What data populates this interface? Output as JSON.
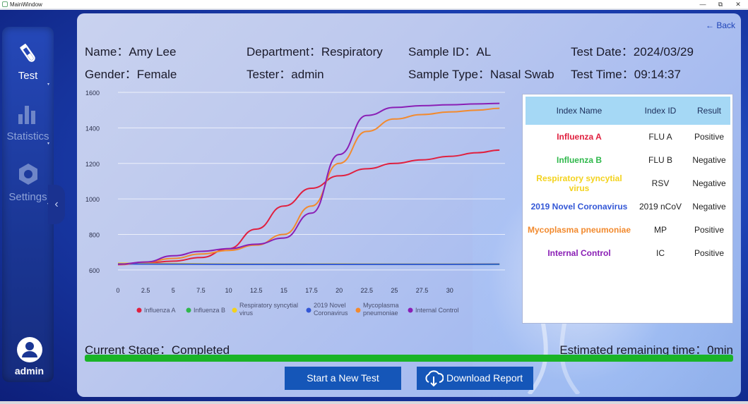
{
  "window": {
    "title": "MainWindow",
    "minimize": "—",
    "restore": "⧉",
    "close": "✕"
  },
  "sidebar": {
    "items": [
      {
        "label": "Test",
        "icon": "test-tube-icon",
        "active": true
      },
      {
        "label": "Statistics",
        "icon": "bar-chart-icon",
        "active": false
      },
      {
        "label": "Settings",
        "icon": "gear-icon",
        "active": false
      }
    ],
    "collapse_glyph": "‹",
    "user": {
      "name": "admin",
      "icon": "user-avatar-icon"
    }
  },
  "header": {
    "back_label": "← Back",
    "name": "Name：Amy Lee",
    "gender": "Gender：Female",
    "department": "Department：Respiratory",
    "tester": "Tester：admin",
    "sample_id": "Sample ID：AL",
    "sample_type": "Sample Type：Nasal Swab",
    "test_date": "Test Date：2024/03/29",
    "test_time": "Test Time：09:14:37"
  },
  "chart_data": {
    "type": "line",
    "title": "",
    "xlabel": "",
    "ylabel": "",
    "xlim": [
      0,
      35
    ],
    "ylim": [
      560,
      1600
    ],
    "x_ticks": [
      0,
      2.5,
      5,
      7.5,
      10,
      12.5,
      15,
      17.5,
      20,
      22.5,
      25,
      27.5,
      30
    ],
    "x_tick_labels": [
      "0",
      "2.5",
      "5",
      "7.5",
      "10",
      "12.5",
      "15",
      "17.5",
      "20",
      "22.5",
      "25",
      "27.5",
      "30"
    ],
    "y_ticks": [
      600,
      800,
      1000,
      1200,
      1400,
      1600
    ],
    "y_tick_labels": [
      "600",
      "800",
      "1000",
      "1200",
      "1400",
      "1600"
    ],
    "grid": true,
    "legend_position": "bottom",
    "series": [
      {
        "name": "Influenza A",
        "color": "#e0203f",
        "x": [
          0,
          2.5,
          5,
          7.5,
          10,
          12.5,
          15,
          17.5,
          20,
          22.5,
          25,
          27.5,
          30,
          32.5,
          34.5
        ],
        "values": [
          630,
          640,
          650,
          670,
          720,
          830,
          960,
          1060,
          1130,
          1170,
          1200,
          1220,
          1240,
          1260,
          1275
        ]
      },
      {
        "name": "Influenza B",
        "color": "#2fb84b",
        "x": [
          0,
          5,
          10,
          15,
          20,
          25,
          30,
          34.5
        ],
        "values": [
          636,
          634,
          633,
          632,
          633,
          632,
          632,
          632
        ]
      },
      {
        "name": "Respiratory syncytial virus",
        "color": "#f3d21c",
        "x": [
          0,
          5,
          10,
          15,
          20,
          25,
          30,
          34.5
        ],
        "values": [
          638,
          636,
          634,
          633,
          634,
          633,
          633,
          634
        ]
      },
      {
        "name": "2019 Novel Coronavirus",
        "color": "#3357d6",
        "x": [
          0,
          5,
          10,
          15,
          20,
          25,
          30,
          34.5
        ],
        "values": [
          634,
          633,
          632,
          632,
          632,
          632,
          632,
          633
        ]
      },
      {
        "name": "Mycoplasma pneumoniae",
        "color": "#f28a2e",
        "x": [
          0,
          2.5,
          5,
          7.5,
          10,
          12.5,
          15,
          17.5,
          20,
          22.5,
          25,
          27.5,
          30,
          32.5,
          34.5
        ],
        "values": [
          630,
          645,
          665,
          690,
          710,
          740,
          800,
          960,
          1200,
          1380,
          1450,
          1475,
          1490,
          1500,
          1510
        ]
      },
      {
        "name": "Internal Control",
        "color": "#8a1fb5",
        "x": [
          0,
          2.5,
          5,
          7.5,
          10,
          12.5,
          15,
          17.5,
          20,
          22.5,
          25,
          27.5,
          30,
          32.5,
          34.5
        ],
        "values": [
          632,
          645,
          680,
          705,
          720,
          745,
          780,
          920,
          1250,
          1470,
          1515,
          1525,
          1530,
          1535,
          1538
        ]
      }
    ]
  },
  "results": {
    "headers": [
      "Index Name",
      "Index ID",
      "Result"
    ],
    "rows": [
      {
        "name": "Influenza A",
        "id": "FLU A",
        "result": "Positive",
        "color": "#e0203f"
      },
      {
        "name": "Influenza B",
        "id": "FLU B",
        "result": "Negative",
        "color": "#2fb84b"
      },
      {
        "name": "Respiratory syncytial virus",
        "id": "RSV",
        "result": "Negative",
        "color": "#f3d21c"
      },
      {
        "name": "2019 Novel Coronavirus",
        "id": "2019 nCoV",
        "result": "Negative",
        "color": "#3357d6"
      },
      {
        "name": "Mycoplasma pneumoniae",
        "id": "MP",
        "result": "Positive",
        "color": "#f28a2e"
      },
      {
        "name": "Internal Control",
        "id": "IC",
        "result": "Positive",
        "color": "#8a1fb5"
      }
    ]
  },
  "status": {
    "stage": "Current Stage：Completed",
    "remaining": "Estimated remaining time：0min",
    "progress": 1.0,
    "progress_color": "#1ab427"
  },
  "actions": {
    "start_label": "Start a New Test",
    "download_label": "Download Report",
    "download_icon": "cloud-download-icon"
  }
}
